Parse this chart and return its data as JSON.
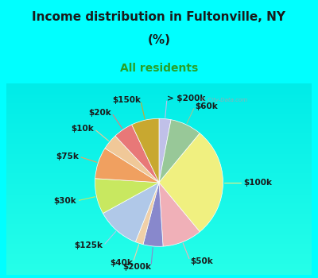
{
  "title_line1": "Income distribution in Fultonville, NY",
  "title_line2": "(%)",
  "subtitle": "All residents",
  "bg_color": "#00FFFF",
  "chart_bg_gradient_top": "#e8f8f0",
  "chart_bg_gradient_bottom": "#c8f0e8",
  "labels": [
    "> $200k",
    "$60k",
    "$100k",
    "$50k",
    "$200k",
    "$40k",
    "$125k",
    "$30k",
    "$75k",
    "$10k",
    "$20k",
    "$150k"
  ],
  "sizes": [
    3,
    8,
    28,
    10,
    5,
    2,
    11,
    9,
    8,
    4,
    5,
    7
  ],
  "colors": [
    "#c0c0e8",
    "#98c898",
    "#f0f080",
    "#f0b0b8",
    "#8888cc",
    "#f0d0a8",
    "#b0c8e8",
    "#c8e860",
    "#f0a060",
    "#f0c898",
    "#e87878",
    "#c8a830"
  ],
  "startangle": 90,
  "title_fontsize": 11,
  "subtitle_fontsize": 10,
  "label_fontsize": 7.5,
  "watermark": "City-Data.com"
}
